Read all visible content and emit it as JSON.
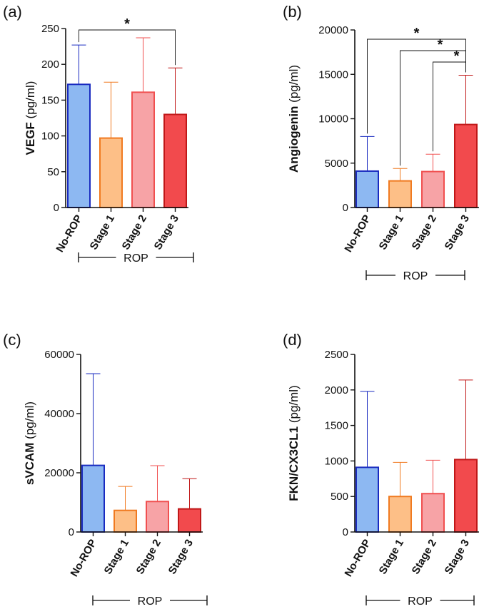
{
  "chart_data": [
    {
      "type": "bar",
      "panel": "(a)",
      "ylabel_bold": "VEGF",
      "ylabel_unit": "(pg/ml)",
      "ylim": [
        0,
        250
      ],
      "yticks": [
        0,
        50,
        100,
        150,
        200,
        250
      ],
      "categories": [
        "No-ROP",
        "Stage 1",
        "Stage 2",
        "Stage 3"
      ],
      "values": [
        172,
        97,
        161,
        130
      ],
      "errors_upper": [
        227,
        175,
        237,
        195
      ],
      "group_label": "ROP",
      "significance": [
        {
          "from": 0,
          "to": 3,
          "label": "*"
        }
      ]
    },
    {
      "type": "bar",
      "panel": "(b)",
      "ylabel_bold": "Angiogenin",
      "ylabel_unit": "(pg/ml)",
      "ylim": [
        0,
        20000
      ],
      "yticks": [
        0,
        5000,
        10000,
        15000,
        20000
      ],
      "categories": [
        "No-ROP",
        "Stage 1",
        "Stage 2",
        "Stage 3"
      ],
      "values": [
        4100,
        3000,
        4050,
        9350
      ],
      "errors_upper": [
        8000,
        4400,
        6000,
        14900
      ],
      "group_label": "ROP",
      "significance": [
        {
          "from": 0,
          "to": 3,
          "label": "*"
        },
        {
          "from": 1,
          "to": 3,
          "label": "*"
        },
        {
          "from": 2,
          "to": 3,
          "label": "*"
        }
      ]
    },
    {
      "type": "bar",
      "panel": "(c)",
      "ylabel_bold": "sVCAM",
      "ylabel_unit": "(pg/ml)",
      "ylim": [
        0,
        60000
      ],
      "yticks": [
        0,
        20000,
        40000,
        60000
      ],
      "categories": [
        "No-ROP",
        "Stage 1",
        "Stage 2",
        "Stage 3"
      ],
      "values": [
        22500,
        7300,
        10300,
        7800
      ],
      "errors_upper": [
        53500,
        15400,
        22400,
        18000
      ],
      "group_label": "ROP",
      "significance": []
    },
    {
      "type": "bar",
      "panel": "(d)",
      "ylabel_bold": "FKN/CX3CL1",
      "ylabel_unit": "(pg/ml)",
      "ylim": [
        0,
        2500
      ],
      "yticks": [
        0,
        500,
        1000,
        1500,
        2000,
        2500
      ],
      "categories": [
        "No-ROP",
        "Stage 1",
        "Stage 2",
        "Stage 3"
      ],
      "values": [
        910,
        500,
        540,
        1020
      ],
      "errors_upper": [
        1980,
        980,
        1010,
        2140
      ],
      "group_label": "ROP",
      "significance": []
    }
  ],
  "colors": {
    "fills": [
      "#8DB8F2",
      "#FDBF87",
      "#F7A3A6",
      "#F24A4D"
    ],
    "strokes": [
      "#1A2BC0",
      "#F07A20",
      "#F05050",
      "#C01818"
    ],
    "axis": "#111111"
  }
}
